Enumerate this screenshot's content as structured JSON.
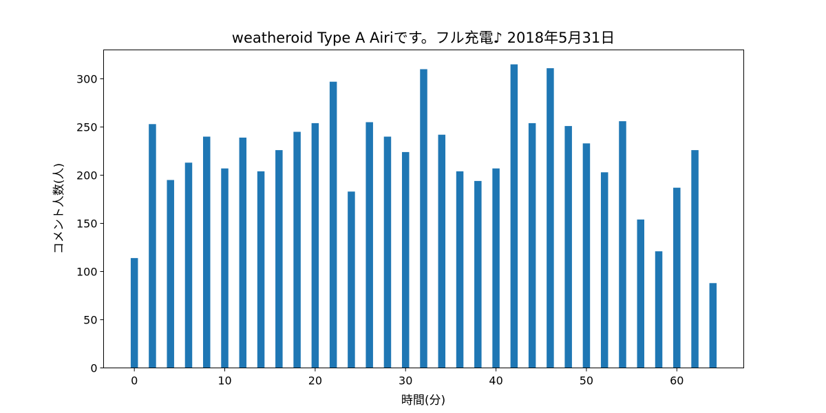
{
  "chart_data": {
    "type": "bar",
    "title": "weatheroid Type A  Airiです。フル充電♪ 2018年5月31日",
    "xlabel": "時間(分)",
    "ylabel": "コメント人数(人)",
    "x": [
      0,
      2,
      4,
      6,
      8,
      10,
      12,
      14,
      16,
      18,
      20,
      22,
      24,
      26,
      28,
      30,
      32,
      34,
      36,
      38,
      40,
      42,
      44,
      46,
      48,
      50,
      52,
      54,
      56,
      58,
      60,
      62,
      64
    ],
    "values": [
      114,
      253,
      195,
      213,
      240,
      207,
      239,
      204,
      226,
      245,
      254,
      297,
      183,
      255,
      240,
      224,
      310,
      242,
      204,
      194,
      207,
      315,
      254,
      311,
      251,
      233,
      203,
      256,
      154,
      121,
      187,
      226,
      88
    ],
    "bar_width": 0.8,
    "xlim": [
      -3.4,
      67.4
    ],
    "ylim": [
      0,
      330
    ],
    "xticks": [
      0,
      10,
      20,
      30,
      40,
      50,
      60
    ],
    "yticks": [
      0,
      50,
      100,
      150,
      200,
      250,
      300
    ],
    "bar_color": "#1f77b4",
    "grid": false,
    "legend": "none"
  }
}
